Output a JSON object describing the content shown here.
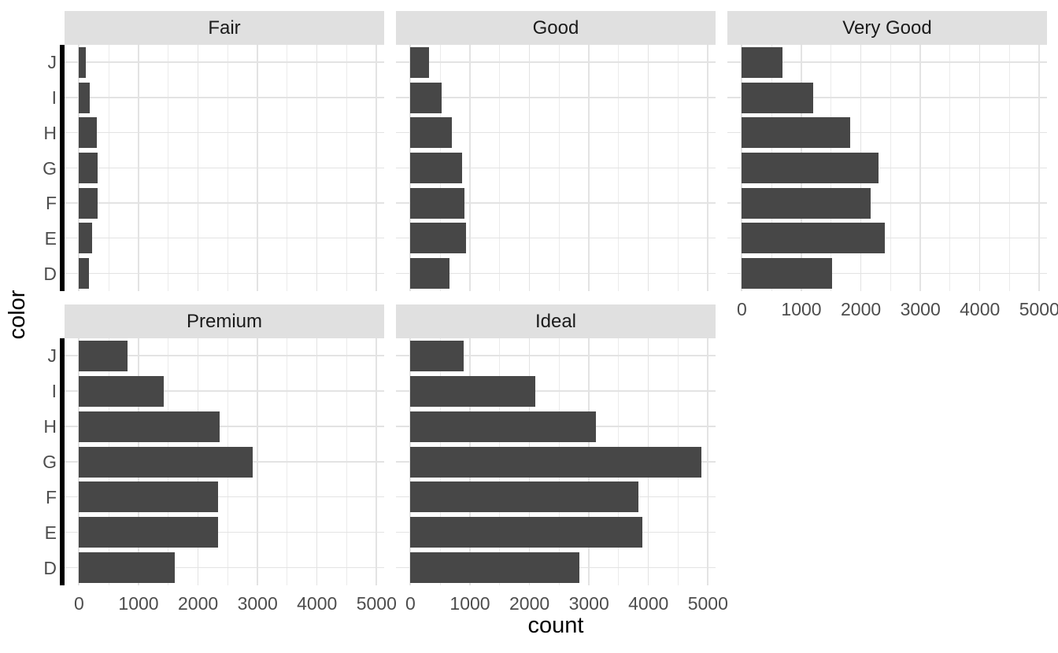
{
  "axes": {
    "x_title": "count",
    "y_title": "color",
    "x_tick_labels": [
      "0",
      "1000",
      "2000",
      "3000",
      "4000",
      "5000"
    ],
    "y_category_labels_top_to_bottom": [
      "J",
      "I",
      "H",
      "G",
      "F",
      "E",
      "D"
    ]
  },
  "chart_data": {
    "type": "bar",
    "orientation": "horizontal",
    "title": "",
    "xlabel": "count",
    "ylabel": "color",
    "facet_variable": "cut",
    "categories": [
      "J",
      "I",
      "H",
      "G",
      "F",
      "E",
      "D"
    ],
    "x_ticks": [
      0,
      1000,
      2000,
      3000,
      4000,
      5000
    ],
    "x_minor_ticks": [
      500,
      1500,
      2500,
      3500,
      4500
    ],
    "xlim": [
      0,
      5000
    ],
    "xlim_expanded": [
      -244,
      5128
    ],
    "grid": true,
    "legend": false,
    "facets": [
      {
        "label": "Fair",
        "row": 0,
        "col": 0,
        "show_y_labels": true,
        "show_x_axis": false,
        "values": [
          119,
          175,
          303,
          314,
          312,
          224,
          163
        ]
      },
      {
        "label": "Good",
        "row": 0,
        "col": 1,
        "show_y_labels": false,
        "show_x_axis": false,
        "values": [
          307,
          522,
          702,
          871,
          909,
          933,
          662
        ]
      },
      {
        "label": "Very Good",
        "row": 0,
        "col": 2,
        "show_y_labels": false,
        "show_x_axis": true,
        "values": [
          678,
          1204,
          1824,
          2299,
          2164,
          2400,
          1513
        ]
      },
      {
        "label": "Premium",
        "row": 1,
        "col": 0,
        "show_y_labels": true,
        "show_x_axis": true,
        "values": [
          808,
          1428,
          2360,
          2924,
          2331,
          2337,
          1603
        ]
      },
      {
        "label": "Ideal",
        "row": 1,
        "col": 1,
        "show_y_labels": false,
        "show_x_axis": true,
        "values": [
          896,
          2093,
          3115,
          4884,
          3826,
          3903,
          2834
        ]
      }
    ]
  },
  "colors": {
    "bar": "#474747",
    "strip_bg": "#E0E0E0",
    "strip_text": "#1A1A1A",
    "grid_major": "#E3E3E3",
    "grid_minor": "#EBEBEB",
    "axis_text": "#4D4D4D",
    "axis_title": "#000000",
    "axis_line": "#000000",
    "background": "#FFFFFF"
  }
}
